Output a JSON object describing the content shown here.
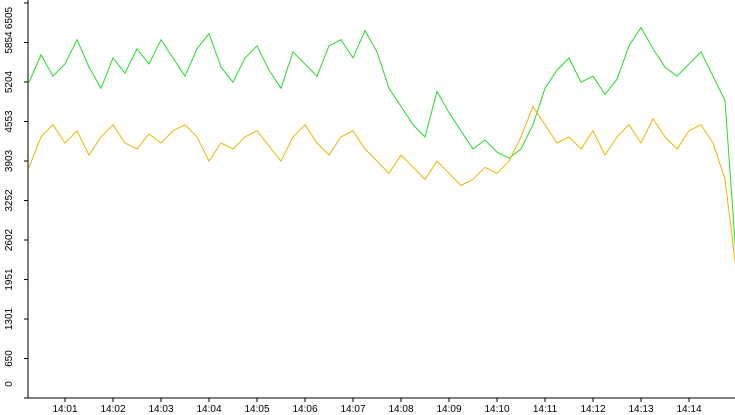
{
  "chart_data": {
    "type": "line",
    "categories": [
      null,
      null,
      null,
      "14:01",
      null,
      null,
      null,
      "14:02",
      null,
      null,
      null,
      "14:03",
      null,
      null,
      null,
      "14:04",
      null,
      null,
      null,
      "14:05",
      null,
      null,
      null,
      "14:06",
      null,
      null,
      null,
      "14:07",
      null,
      null,
      null,
      "14:08",
      null,
      null,
      null,
      "14:09",
      null,
      null,
      null,
      "14:10",
      null,
      null,
      null,
      "14:11",
      null,
      null,
      null,
      "14:12",
      null,
      null,
      null,
      "14:13",
      null,
      null,
      null,
      "14:14",
      null,
      null,
      null,
      null
    ],
    "series": [
      {
        "name": null,
        "color": "#22dd22",
        "values": [
          5200,
          5650,
          5300,
          5500,
          5900,
          5450,
          5100,
          5600,
          5350,
          5750,
          5500,
          5900,
          5600,
          5300,
          5750,
          6000,
          5450,
          5200,
          5600,
          5800,
          5400,
          5100,
          5700,
          5500,
          5300,
          5800,
          5900,
          5600,
          6050,
          5700,
          5100,
          4800,
          4500,
          4300,
          5050,
          4700,
          4400,
          4100,
          4250,
          4050,
          3950,
          4100,
          4500,
          5100,
          5400,
          5600,
          5200,
          5300,
          5000,
          5250,
          5800,
          6100,
          5750,
          5450,
          5300,
          5500,
          5700,
          5300,
          4900,
          2100
        ]
      },
      {
        "name": null,
        "color": "#f0b400",
        "values": [
          3800,
          4300,
          4500,
          4200,
          4400,
          4000,
          4300,
          4500,
          4200,
          4100,
          4350,
          4200,
          4400,
          4500,
          4300,
          3900,
          4200,
          4100,
          4300,
          4400,
          4150,
          3900,
          4300,
          4500,
          4200,
          4000,
          4300,
          4400,
          4100,
          3900,
          3700,
          4000,
          3800,
          3600,
          3900,
          3700,
          3500,
          3600,
          3800,
          3700,
          3900,
          4300,
          4800,
          4500,
          4200,
          4300,
          4100,
          4400,
          4000,
          4300,
          4500,
          4200,
          4600,
          4300,
          4100,
          4400,
          4500,
          4200,
          3600,
          2000
        ]
      }
    ],
    "ylim": [
      0,
      6505
    ],
    "yticks": [
      0,
      650,
      1301,
      1951,
      2602,
      3252,
      3903,
      4553,
      5204,
      5854,
      6505
    ]
  }
}
